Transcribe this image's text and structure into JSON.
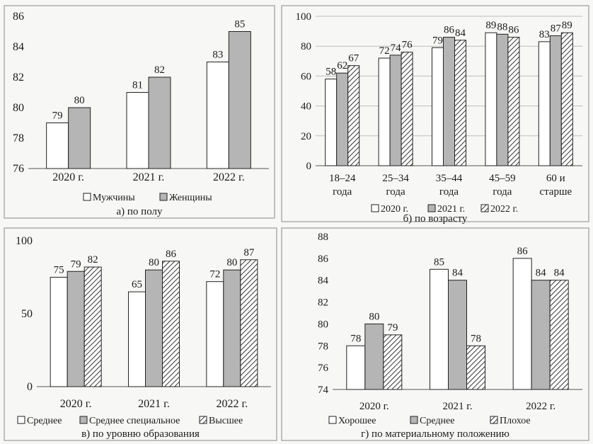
{
  "colors": {
    "series_fill": [
      "#ffffff",
      "#b5b5b5",
      "hatch"
    ],
    "stroke": "#222222",
    "gridline": "#bdbdbd",
    "frame": "#8a8a8a"
  },
  "chart_data": [
    {
      "type": "bar",
      "caption": "а) по полу",
      "categories": [
        "2020 г.",
        "2021 г.",
        "2022 г."
      ],
      "series": [
        {
          "name": "Мужчины",
          "values": [
            79,
            81,
            83
          ]
        },
        {
          "name": "Женщины",
          "values": [
            80,
            82,
            85
          ]
        }
      ],
      "ylim": [
        76,
        86
      ],
      "yticks": [
        76,
        78,
        80,
        82,
        84,
        86
      ],
      "legend_position": "bottom",
      "grid": false
    },
    {
      "type": "bar",
      "caption": "б) по возрасту",
      "categories": [
        "18–24 года",
        "25–34 года",
        "35–44 года",
        "45–59 года",
        "60 и старше"
      ],
      "category_lines": [
        [
          "18–24",
          "года"
        ],
        [
          "25–34",
          "года"
        ],
        [
          "35–44",
          "года"
        ],
        [
          "45–59",
          "года"
        ],
        [
          "60 и",
          "старше"
        ]
      ],
      "series": [
        {
          "name": "2020 г.",
          "values": [
            58,
            72,
            79,
            89,
            83
          ]
        },
        {
          "name": "2021 г.",
          "values": [
            62,
            74,
            86,
            88,
            87
          ]
        },
        {
          "name": "2022 г.",
          "values": [
            67,
            76,
            84,
            86,
            89
          ]
        }
      ],
      "ylim": [
        0,
        100
      ],
      "yticks": [
        0,
        20,
        40,
        60,
        80,
        100
      ],
      "legend_position": "bottom",
      "grid": true
    },
    {
      "type": "bar",
      "caption": "в) по уровню образования",
      "categories": [
        "2020 г.",
        "2021 г.",
        "2022 г."
      ],
      "series": [
        {
          "name": "Среднее",
          "values": [
            75,
            65,
            72
          ]
        },
        {
          "name": "Среднее специальное",
          "values": [
            79,
            80,
            80
          ]
        },
        {
          "name": "Высшее",
          "values": [
            82,
            86,
            87
          ]
        }
      ],
      "ylim": [
        0,
        100
      ],
      "yticks": [
        0,
        50,
        100
      ],
      "legend_position": "bottom",
      "grid": false
    },
    {
      "type": "bar",
      "caption": "г) по материальному положению",
      "categories": [
        "2020 г.",
        "2021 г.",
        "2022 г."
      ],
      "series": [
        {
          "name": "Хорошее",
          "values": [
            78,
            85,
            86
          ]
        },
        {
          "name": "Среднее",
          "values": [
            80,
            84,
            84
          ]
        },
        {
          "name": "Плохое",
          "values": [
            79,
            78,
            84
          ]
        }
      ],
      "ylim": [
        74,
        88
      ],
      "yticks": [
        74,
        76,
        78,
        80,
        82,
        84,
        86,
        88
      ],
      "legend_position": "bottom",
      "grid": false
    }
  ]
}
